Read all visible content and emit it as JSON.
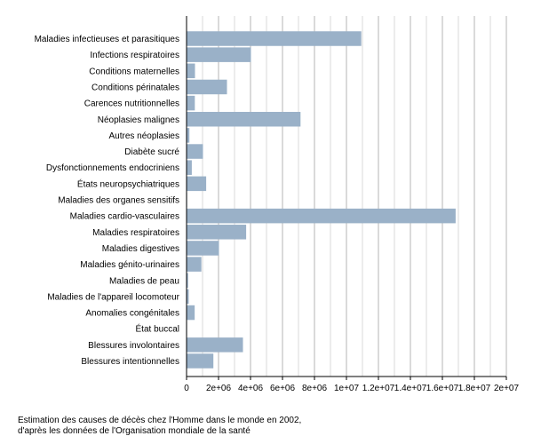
{
  "chart_data": {
    "type": "bar",
    "orientation": "horizontal",
    "categories": [
      "Maladies infectieuses et parasitiques",
      "Infections respiratoires",
      "Conditions maternelles",
      "Conditions périnatales",
      "Carences nutritionnelles",
      "Néoplasies malignes",
      "Autres néoplasies",
      "Diabète sucré",
      "Dysfonctionnements endocriniens",
      "États neuropsychiatriques",
      "Maladies des organes sensitifs",
      "Maladies cardio-vasculaires",
      "Maladies respiratoires",
      "Maladies digestives",
      "Maladies génito-urinaires",
      "Maladies de peau",
      "Maladies de l'appareil locomoteur",
      "Anomalies congénitales",
      "État buccal",
      "Blessures involontaires",
      "Blessures intentionnelles"
    ],
    "values": [
      10900000,
      4000000,
      500000,
      2500000,
      490000,
      7100000,
      150000,
      1000000,
      300000,
      1200000,
      10000,
      16800000,
      3700000,
      2000000,
      900000,
      70000,
      110000,
      480000,
      5000,
      3500000,
      1650000
    ],
    "x_ticks": [
      "0",
      "2e+06",
      "4e+06",
      "6e+06",
      "8e+06",
      "1e+07",
      "1.2e+07",
      "1.4e+07",
      "1.6e+07",
      "1.8e+07",
      "2e+07"
    ],
    "xlim": [
      0,
      20000000
    ],
    "xlabel": "",
    "ylabel": "",
    "grid": "vertical",
    "bar_color": "#9ab1c8",
    "legend": "none"
  },
  "caption": {
    "line1": "Estimation des causes de décès chez l'Homme dans le monde en 2002,",
    "line2": "d'après les données de l'Organisation mondiale de la santé"
  }
}
